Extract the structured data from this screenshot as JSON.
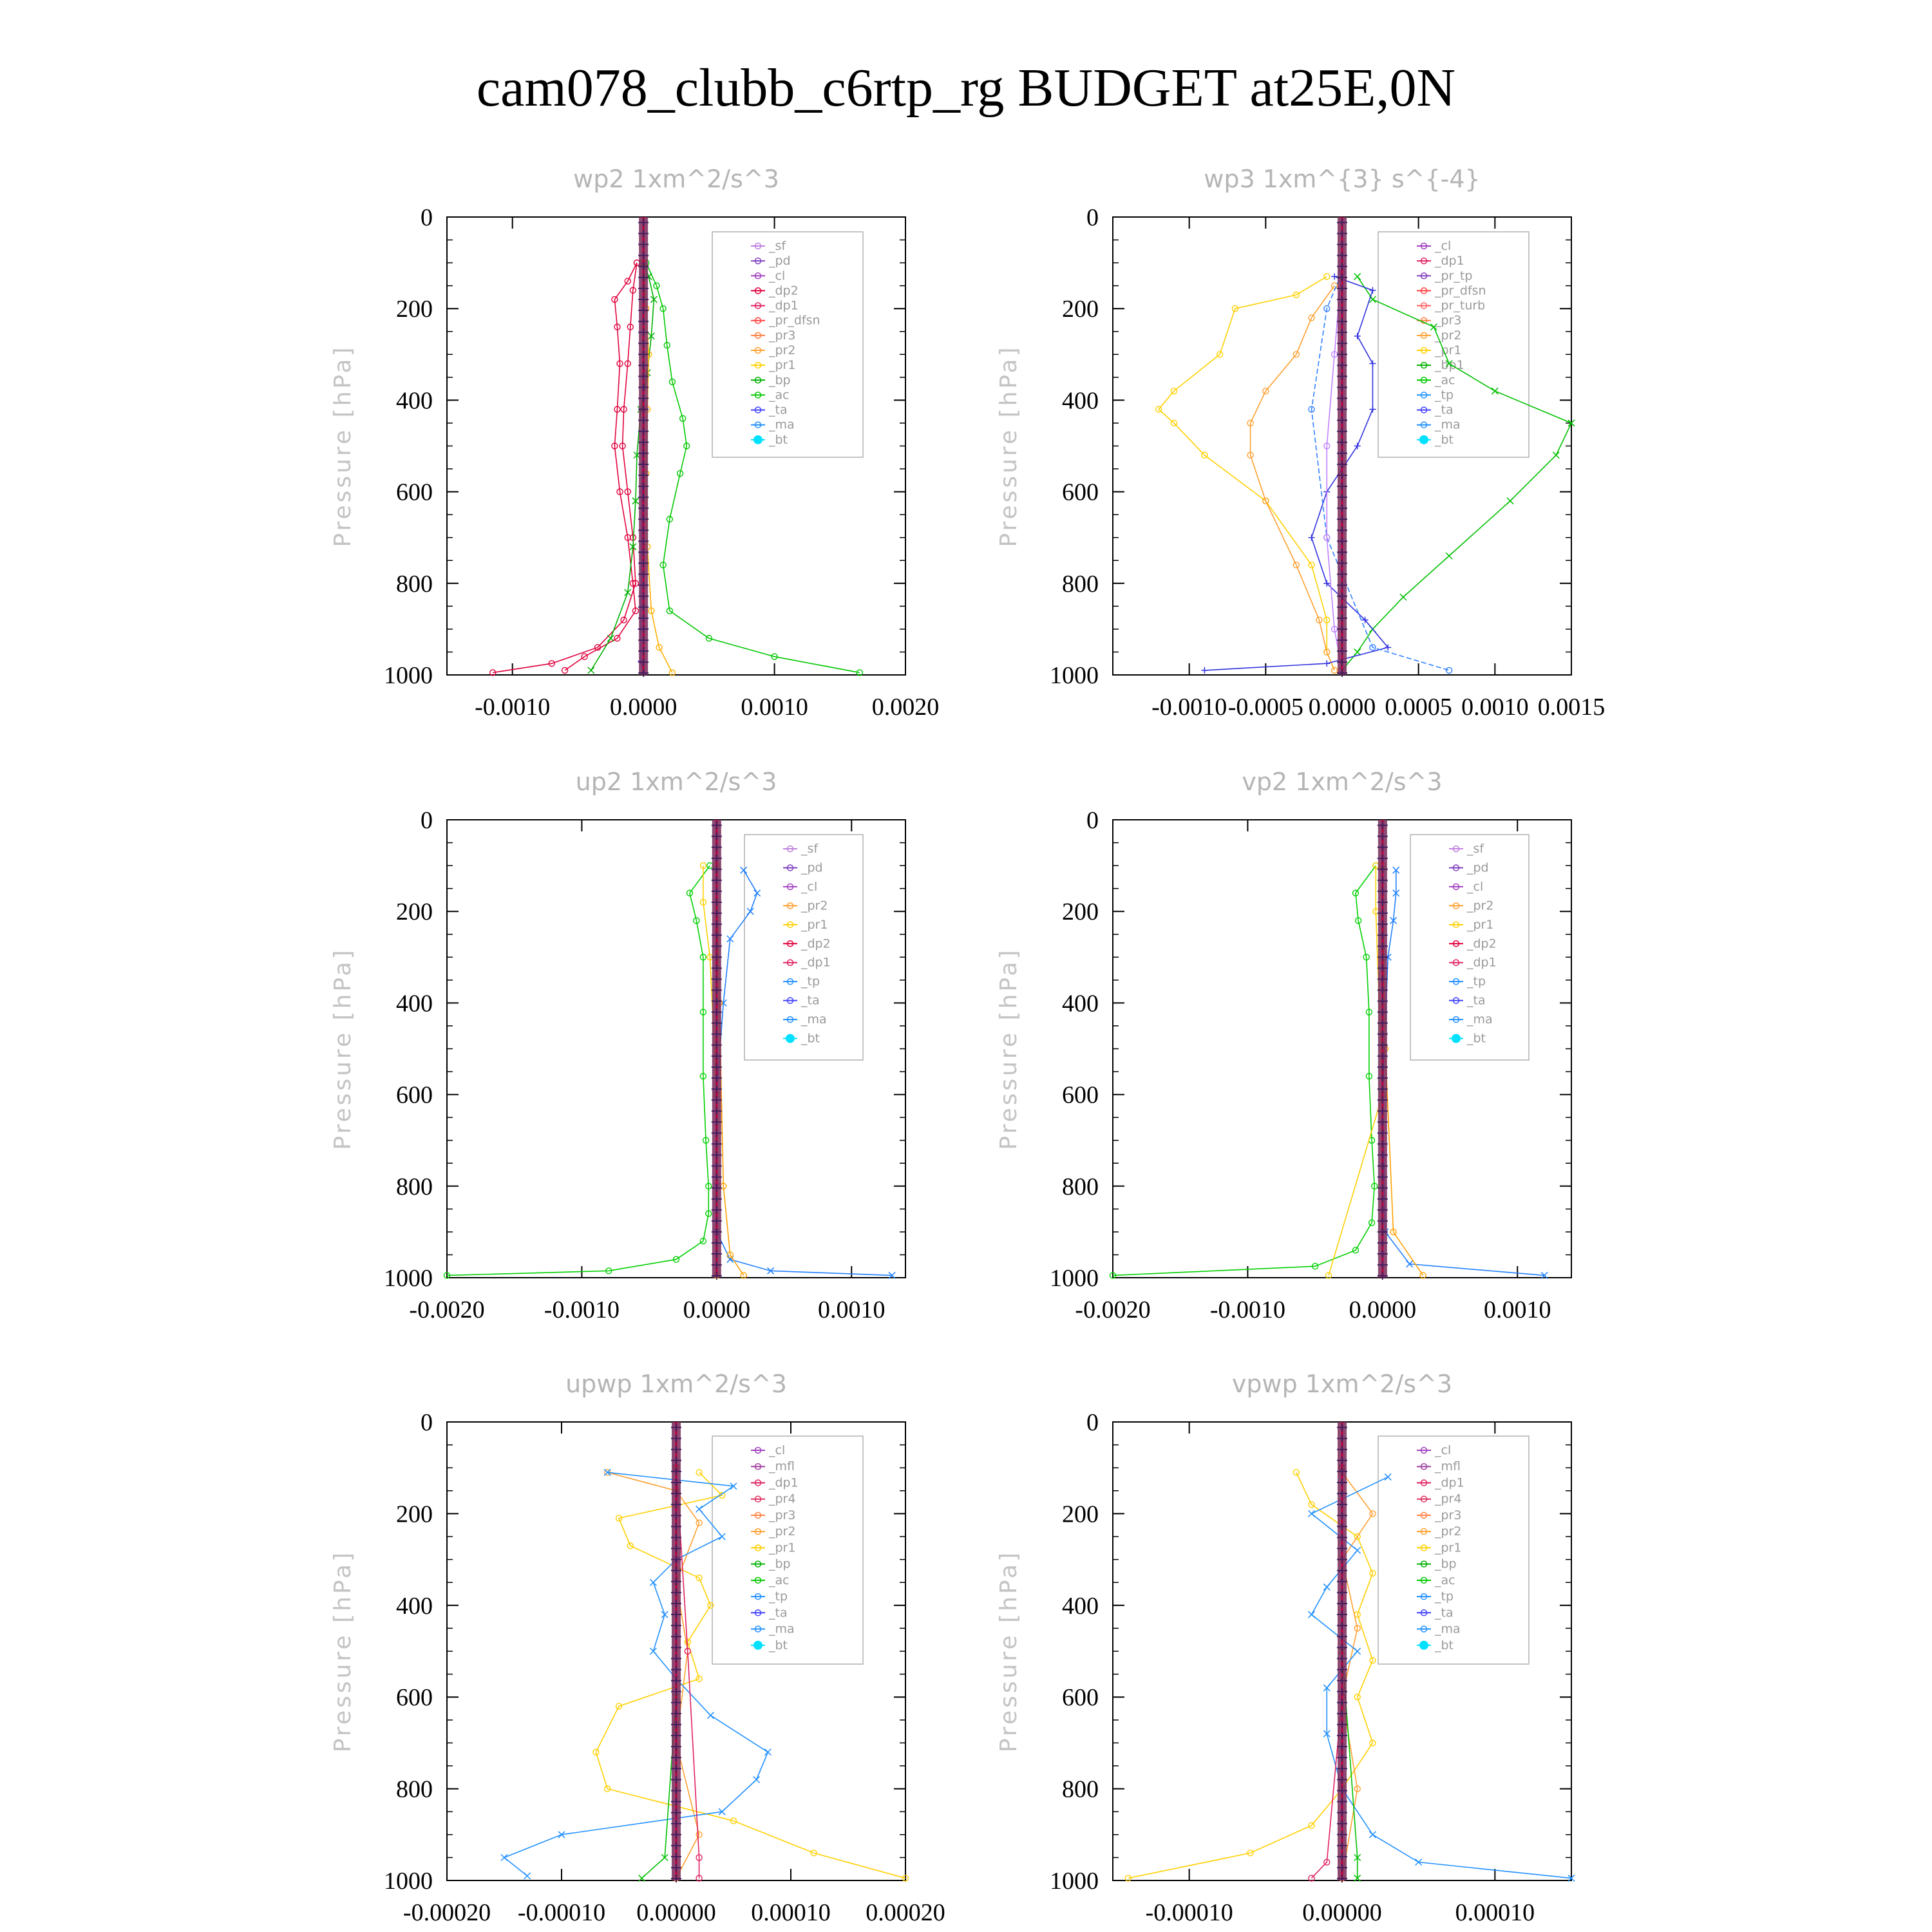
{
  "title": "cam078_clubb_c6rtp_rg  BUDGET at25E,0N",
  "chart_data": [
    {
      "type": "line",
      "title": "wp2   1xm^2/s^3",
      "ylabel": "Pressure  [hPa]",
      "xlim": [
        -0.0015,
        0.002
      ],
      "ylim": [
        1000,
        0
      ],
      "xticks": [
        "-0.0010",
        "0.0000",
        "0.0010",
        "0.0020"
      ],
      "xtick_values": [
        -0.001,
        0,
        0.001,
        0.002
      ],
      "yticks": [
        "0",
        "200",
        "400",
        "600",
        "800",
        "1000"
      ],
      "legend": [
        "_sf",
        "_pd",
        "_cl",
        "_dp2",
        "_dp1",
        "_pr_dfsn",
        "_pr3",
        "_pr2",
        "_pr1",
        "_bp",
        "_ac",
        "_ta",
        "_ma",
        "_bt"
      ],
      "series": [
        {
          "name": "_dp2",
          "color": "#e0003c",
          "marker": "o",
          "x": [
            -5e-05,
            -0.00012,
            -0.00022,
            -0.0002,
            -0.00018,
            -0.0002,
            -0.00022,
            -0.00018,
            -0.00012,
            -8e-05,
            -6e-05,
            -0.0002,
            -0.00045,
            -0.0006
          ],
          "y": [
            100,
            140,
            180,
            240,
            320,
            420,
            500,
            600,
            700,
            800,
            860,
            920,
            960,
            990
          ]
        },
        {
          "name": "_dp1",
          "color": "#e0003c",
          "marker": "d",
          "x": [
            -5e-05,
            -8e-05,
            -0.0001,
            -0.00012,
            -0.00015,
            -0.00016,
            -0.00012,
            -8e-05,
            -6e-05,
            -0.00015,
            -0.00035,
            -0.0007,
            -0.00115
          ],
          "y": [
            100,
            160,
            240,
            320,
            420,
            500,
            600,
            700,
            800,
            880,
            940,
            975,
            995
          ]
        },
        {
          "name": "_ac",
          "color": "#00c800",
          "marker": "o",
          "x": [
            2e-05,
            0.0001,
            0.00015,
            0.00018,
            0.00022,
            0.0003,
            0.00033,
            0.00028,
            0.0002,
            0.00015,
            0.0002,
            0.0005,
            0.001,
            0.00165
          ],
          "y": [
            100,
            150,
            200,
            280,
            360,
            440,
            500,
            560,
            660,
            760,
            860,
            920,
            960,
            995
          ]
        },
        {
          "name": "_bp",
          "color": "#00b000",
          "marker": "x",
          "x": [
            0.0,
            4e-05,
            8e-05,
            6e-05,
            3e-05,
            -2e-05,
            -5e-05,
            -6e-05,
            -8e-05,
            -0.00012,
            -0.00025,
            -0.0004
          ],
          "y": [
            100,
            130,
            180,
            260,
            340,
            420,
            520,
            620,
            720,
            820,
            920,
            990
          ]
        },
        {
          "name": "_pr1",
          "color": "#ffb000",
          "marker": "v",
          "x": [
            0.0,
            2e-05,
            4e-05,
            3e-05,
            2e-05,
            3e-05,
            6e-05,
            0.00012,
            0.00022
          ],
          "y": [
            100,
            200,
            300,
            420,
            560,
            720,
            860,
            940,
            995
          ]
        },
        {
          "name": "_ta",
          "color": "#5050ff",
          "marker": "+",
          "x": [
            0.0,
            0.0,
            -1e-05,
            -2e-05,
            -2e-05,
            0.0
          ],
          "y": [
            100,
            300,
            600,
            900,
            970,
            995
          ]
        }
      ]
    },
    {
      "type": "line",
      "title": "wp3   1xm^{3} s^{-4}",
      "ylabel": "Pressure  [hPa]",
      "xlim": [
        -0.0015,
        0.0015
      ],
      "ylim": [
        1000,
        0
      ],
      "xticks": [
        "-0.0010",
        "-0.0005",
        "0.0000",
        "0.0005",
        "0.0010",
        "0.0015"
      ],
      "xtick_values": [
        -0.001,
        -0.0005,
        0,
        0.0005,
        0.001,
        0.0015
      ],
      "yticks": [
        "0",
        "200",
        "400",
        "600",
        "800",
        "1000"
      ],
      "legend": [
        "_cl",
        "_dp1",
        "_pr_tp",
        "_pr_dfsn",
        "_pr_turb",
        "_pr3",
        "_pr2",
        "_pr1",
        "_bp1",
        "_ac",
        "_tp",
        "_ta",
        "_ma",
        "_bt"
      ],
      "series": [
        {
          "name": "_pr1",
          "color": "#ffd000",
          "marker": "v",
          "x": [
            -0.0001,
            -0.0003,
            -0.0007,
            -0.0008,
            -0.0011,
            -0.0012,
            -0.0011,
            -0.0009,
            -0.0005,
            -0.0002,
            -0.0001,
            -0.0001,
            -5e-05
          ],
          "y": [
            130,
            170,
            200,
            300,
            380,
            420,
            450,
            520,
            620,
            760,
            880,
            950,
            990
          ]
        },
        {
          "name": "_pr2",
          "color": "#ffa030",
          "marker": "^",
          "x": [
            -5e-05,
            -0.0002,
            -0.0003,
            -0.0005,
            -0.0006,
            -0.0006,
            -0.0005,
            -0.0003,
            -0.00015,
            -0.0001,
            -5e-05
          ],
          "y": [
            150,
            220,
            300,
            380,
            450,
            520,
            620,
            760,
            880,
            950,
            990
          ]
        },
        {
          "name": "_ac",
          "color": "#00c000",
          "marker": "x",
          "x": [
            0.0001,
            0.0002,
            0.0006,
            0.0007,
            0.001,
            0.0015,
            0.0014,
            0.0011,
            0.0007,
            0.0004,
            0.0002,
            0.0001,
            0.0
          ],
          "y": [
            130,
            180,
            240,
            320,
            380,
            450,
            520,
            620,
            740,
            830,
            900,
            950,
            990
          ]
        },
        {
          "name": "_tp",
          "color": "#3030e0",
          "marker": "+",
          "x": [
            -5e-05,
            0.0002,
            0.0001,
            0.0002,
            0.0002,
            0.0001,
            -0.0001,
            -0.0002,
            -0.0001,
            0.00015,
            0.0003,
            -0.0001,
            -0.0009
          ],
          "y": [
            130,
            160,
            260,
            320,
            420,
            500,
            600,
            700,
            800,
            880,
            940,
            975,
            990
          ]
        },
        {
          "name": "_ma",
          "color": "#3080ff",
          "marker": "-",
          "x": [
            0.0,
            -0.0001,
            -0.0002,
            -0.0001,
            0.0002,
            0.0007
          ],
          "y": [
            120,
            200,
            420,
            700,
            940,
            990
          ]
        },
        {
          "name": "_cl",
          "color": "#c080ff",
          "marker": "o",
          "x": [
            0.0,
            -5e-05,
            -0.0001,
            -0.0001,
            -5e-05,
            0.0
          ],
          "y": [
            100,
            300,
            500,
            700,
            900,
            990
          ]
        }
      ]
    },
    {
      "type": "line",
      "title": "up2   1xm^2/s^3",
      "ylabel": "Pressure  [hPa]",
      "xlim": [
        -0.002,
        0.0014
      ],
      "ylim": [
        1000,
        0
      ],
      "xticks": [
        "-0.0020",
        "-0.0010",
        "0.0000",
        "0.0010"
      ],
      "xtick_values": [
        -0.002,
        -0.001,
        0,
        0.001
      ],
      "yticks": [
        "0",
        "200",
        "400",
        "600",
        "800",
        "1000"
      ],
      "legend": [
        "_sf",
        "_pd",
        "_cl",
        "_pr2",
        "_pr1",
        "_dp2",
        "_dp1",
        "_tp",
        "_ta",
        "_ma",
        "_bt"
      ],
      "series": [
        {
          "name": "_dp1",
          "color": "#00d000",
          "marker": "o",
          "x": [
            -5e-05,
            -0.0002,
            -0.00015,
            -0.0001,
            -0.0001,
            -0.0001,
            -8e-05,
            -6e-05,
            -6e-05,
            -0.0001,
            -0.0003,
            -0.0008,
            -0.002
          ],
          "y": [
            100,
            160,
            220,
            300,
            420,
            560,
            700,
            800,
            860,
            920,
            960,
            985,
            995
          ]
        },
        {
          "name": "_tp",
          "color": "#2080ff",
          "marker": "x",
          "x": [
            0.0002,
            0.0003,
            0.00025,
            0.0001,
            5e-05,
            0.0,
            0.0,
            0.0,
            0.0001,
            0.0004,
            0.0013
          ],
          "y": [
            110,
            160,
            200,
            260,
            400,
            600,
            800,
            900,
            960,
            985,
            995
          ]
        },
        {
          "name": "_pr2",
          "color": "#ffa000",
          "marker": "^",
          "x": [
            0.0,
            2e-05,
            5e-05,
            0.0001,
            0.0002
          ],
          "y": [
            100,
            400,
            800,
            950,
            995
          ]
        },
        {
          "name": "_pr1",
          "color": "#ffd000",
          "marker": "v",
          "x": [
            -0.0001,
            -0.0001,
            -5e-05,
            0.0,
            0.0
          ],
          "y": [
            100,
            180,
            300,
            600,
            995
          ]
        }
      ]
    },
    {
      "type": "line",
      "title": "vp2   1xm^2/s^3",
      "ylabel": "Pressure  [hPa]",
      "xlim": [
        -0.002,
        0.0014
      ],
      "ylim": [
        1000,
        0
      ],
      "xticks": [
        "-0.0020",
        "-0.0010",
        "0.0000",
        "0.0010"
      ],
      "xtick_values": [
        -0.002,
        -0.001,
        0,
        0.001
      ],
      "yticks": [
        "0",
        "200",
        "400",
        "600",
        "800",
        "1000"
      ],
      "legend": [
        "_sf",
        "_pd",
        "_cl",
        "_pr2",
        "_pr1",
        "_dp2",
        "_dp1",
        "_tp",
        "_ta",
        "_ma",
        "_bt"
      ],
      "series": [
        {
          "name": "_dp1",
          "color": "#00d000",
          "marker": "o",
          "x": [
            -5e-05,
            -0.0002,
            -0.00018,
            -0.00012,
            -0.0001,
            -0.0001,
            -8e-05,
            -6e-05,
            -8e-05,
            -0.0002,
            -0.0005,
            -0.002
          ],
          "y": [
            100,
            160,
            220,
            300,
            420,
            560,
            700,
            800,
            880,
            940,
            975,
            995
          ]
        },
        {
          "name": "_tp",
          "color": "#2080ff",
          "marker": "x",
          "x": [
            0.0001,
            0.0001,
            8e-05,
            4e-05,
            0.0,
            2e-05,
            0.0002,
            0.0012
          ],
          "y": [
            110,
            160,
            220,
            300,
            600,
            900,
            970,
            995
          ]
        },
        {
          "name": "_pr2",
          "color": "#ffa000",
          "marker": "^",
          "x": [
            0.0,
            2e-05,
            8e-05,
            0.0003
          ],
          "y": [
            100,
            500,
            900,
            995
          ]
        },
        {
          "name": "_pr1",
          "color": "#ffd000",
          "marker": "v",
          "x": [
            -5e-05,
            -5e-05,
            0.0,
            -0.0004
          ],
          "y": [
            100,
            200,
            600,
            995
          ]
        }
      ]
    },
    {
      "type": "line",
      "title": "upwp   1xm^2/s^3",
      "ylabel": "Pressure  [hPa]",
      "xlim": [
        -0.0002,
        0.0002
      ],
      "ylim": [
        1000,
        0
      ],
      "xticks": [
        "-0.00020",
        "-0.00010",
        "0.00000",
        "0.00010",
        "0.00020"
      ],
      "xtick_values": [
        -0.0002,
        -0.0001,
        0,
        0.0001,
        0.0002
      ],
      "yticks": [
        "0",
        "200",
        "400",
        "600",
        "800",
        "1000"
      ],
      "legend": [
        "_cl",
        "_mfl",
        "_dp1",
        "_pr4",
        "_pr3",
        "_pr2",
        "_pr1",
        "_bp",
        "_ac",
        "_tp",
        "_ta",
        "_ma",
        "_bt"
      ],
      "series": [
        {
          "name": "_pr1",
          "color": "#ffd000",
          "marker": "v",
          "x": [
            2e-05,
            4e-05,
            -5e-05,
            -4e-05,
            2e-05,
            3e-05,
            1e-05,
            2e-05,
            -5e-05,
            -7e-05,
            -6e-05,
            5e-05,
            0.00012,
            0.0002
          ],
          "y": [
            110,
            160,
            210,
            270,
            340,
            400,
            480,
            560,
            620,
            720,
            800,
            870,
            940,
            995
          ]
        },
        {
          "name": "_pr2",
          "color": "#ffa030",
          "marker": "^",
          "x": [
            -6e-05,
            0.0,
            2e-05,
            0.0,
            1e-05,
            0.0,
            2e-05,
            0.0
          ],
          "y": [
            110,
            150,
            220,
            350,
            500,
            700,
            900,
            995
          ]
        },
        {
          "name": "_tp",
          "color": "#2090ff",
          "marker": "x",
          "x": [
            -6e-05,
            5e-05,
            2e-05,
            4e-05,
            0.0,
            -2e-05,
            -1e-05,
            -2e-05,
            0.0,
            3e-05,
            8e-05,
            7e-05,
            4e-05,
            -0.0001,
            -0.00015,
            -0.00013
          ],
          "y": [
            110,
            140,
            190,
            250,
            300,
            350,
            420,
            500,
            560,
            640,
            720,
            780,
            850,
            900,
            950,
            990
          ]
        },
        {
          "name": "_bp",
          "color": "#00c000",
          "marker": "x",
          "x": [
            0.0,
            0.0,
            -1e-05,
            -3e-05
          ],
          "y": [
            100,
            600,
            950,
            995
          ]
        },
        {
          "name": "_dp1",
          "color": "#e02060",
          "marker": "d",
          "x": [
            0.0,
            1e-05,
            2e-05,
            2e-05
          ],
          "y": [
            100,
            500,
            950,
            995
          ]
        }
      ]
    },
    {
      "type": "line",
      "title": "vpwp   1xm^2/s^3",
      "ylabel": "Pressure  [hPa]",
      "xlim": [
        -0.00015,
        0.00015
      ],
      "ylim": [
        1000,
        0
      ],
      "xticks": [
        "-0.00010",
        "0.00000",
        "0.00010"
      ],
      "xtick_values": [
        -0.0001,
        0,
        0.0001
      ],
      "yticks": [
        "0",
        "200",
        "400",
        "600",
        "800",
        "1000"
      ],
      "legend": [
        "_cl",
        "_mfl",
        "_dp1",
        "_pr4",
        "_pr3",
        "_pr2",
        "_pr1",
        "_bp",
        "_ac",
        "_tp",
        "_ta",
        "_ma",
        "_bt"
      ],
      "series": [
        {
          "name": "_pr1",
          "color": "#ffd000",
          "marker": "v",
          "x": [
            -3e-05,
            -2e-05,
            1e-05,
            2e-05,
            1e-05,
            2e-05,
            1e-05,
            2e-05,
            0.0,
            -2e-05,
            -6e-05,
            -0.00014
          ],
          "y": [
            110,
            180,
            250,
            330,
            420,
            520,
            600,
            700,
            800,
            880,
            940,
            995
          ]
        },
        {
          "name": "_pr2",
          "color": "#ffa030",
          "marker": "^",
          "x": [
            0.0,
            2e-05,
            0.0,
            1e-05,
            0.0,
            1e-05,
            0.0
          ],
          "y": [
            110,
            200,
            300,
            450,
            600,
            800,
            995
          ]
        },
        {
          "name": "_tp",
          "color": "#2090ff",
          "marker": "x",
          "x": [
            3e-05,
            -2e-05,
            1e-05,
            -1e-05,
            -2e-05,
            1e-05,
            -1e-05,
            -1e-05,
            0.0,
            2e-05,
            5e-05,
            0.00015
          ],
          "y": [
            120,
            200,
            280,
            360,
            420,
            500,
            580,
            680,
            800,
            900,
            960,
            995
          ]
        },
        {
          "name": "_bp",
          "color": "#00c000",
          "marker": "x",
          "x": [
            0.0,
            0.0,
            1e-05,
            1e-05
          ],
          "y": [
            100,
            500,
            950,
            995
          ]
        },
        {
          "name": "_dp1",
          "color": "#e02060",
          "marker": "d",
          "x": [
            0.0,
            0.0,
            -1e-05,
            -2e-05
          ],
          "y": [
            100,
            600,
            960,
            995
          ]
        }
      ]
    }
  ]
}
